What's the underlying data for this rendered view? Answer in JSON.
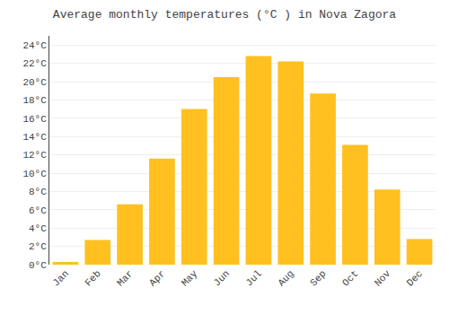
{
  "chart_data": {
    "type": "bar",
    "title": "Average monthly temperatures (°C ) in Nova Zagora",
    "categories": [
      "Jan",
      "Feb",
      "Mar",
      "Apr",
      "May",
      "Jun",
      "Jul",
      "Aug",
      "Sep",
      "Oct",
      "Nov",
      "Dec"
    ],
    "values": [
      0.3,
      2.7,
      6.6,
      11.6,
      17.0,
      20.5,
      22.8,
      22.2,
      18.7,
      13.1,
      8.2,
      2.8
    ],
    "color": "#FFC020",
    "ylim": [
      0,
      25
    ],
    "yticks": [
      {
        "value": 0,
        "label": "0°C"
      },
      {
        "value": 2,
        "label": "2°C"
      },
      {
        "value": 4,
        "label": "4°C"
      },
      {
        "value": 6,
        "label": "6°C"
      },
      {
        "value": 8,
        "label": "8°C"
      },
      {
        "value": 10,
        "label": "10°C"
      },
      {
        "value": 12,
        "label": "12°C"
      },
      {
        "value": 14,
        "label": "14°C"
      },
      {
        "value": 16,
        "label": "16°C"
      },
      {
        "value": 18,
        "label": "18°C"
      },
      {
        "value": 20,
        "label": "20°C"
      },
      {
        "value": 22,
        "label": "22°C"
      },
      {
        "value": 24,
        "label": "24°C"
      }
    ],
    "grid": true
  }
}
